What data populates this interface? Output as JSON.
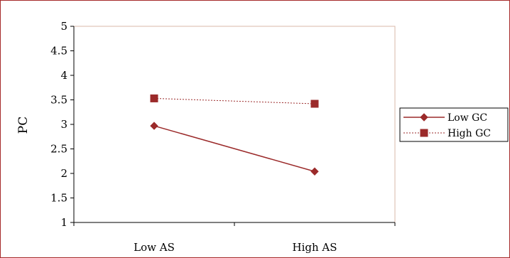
{
  "chart_data": {
    "type": "line",
    "title": "",
    "xlabel": "",
    "ylabel": "PC",
    "categories": [
      "Low AS",
      "High AS"
    ],
    "ylim": [
      1,
      5
    ],
    "yticks": [
      1,
      1.5,
      2,
      2.5,
      3,
      3.5,
      4,
      4.5,
      5
    ],
    "ytick_labels": [
      "1",
      "1.5",
      "2",
      "2.5",
      "3",
      "3.5",
      "4",
      "4.5",
      "5"
    ],
    "grid": false,
    "legend_position": "right",
    "series": [
      {
        "name": "Low GC",
        "values": [
          2.97,
          2.04
        ],
        "marker": "diamond",
        "line_style": "solid",
        "color": "#9b2a2a"
      },
      {
        "name": "High GC",
        "values": [
          3.53,
          3.42
        ],
        "marker": "square",
        "line_style": "dashed",
        "color": "#9b2a2a"
      }
    ],
    "plot_border_color": "#d9b8a8",
    "frame_color": "#a52a2a"
  }
}
